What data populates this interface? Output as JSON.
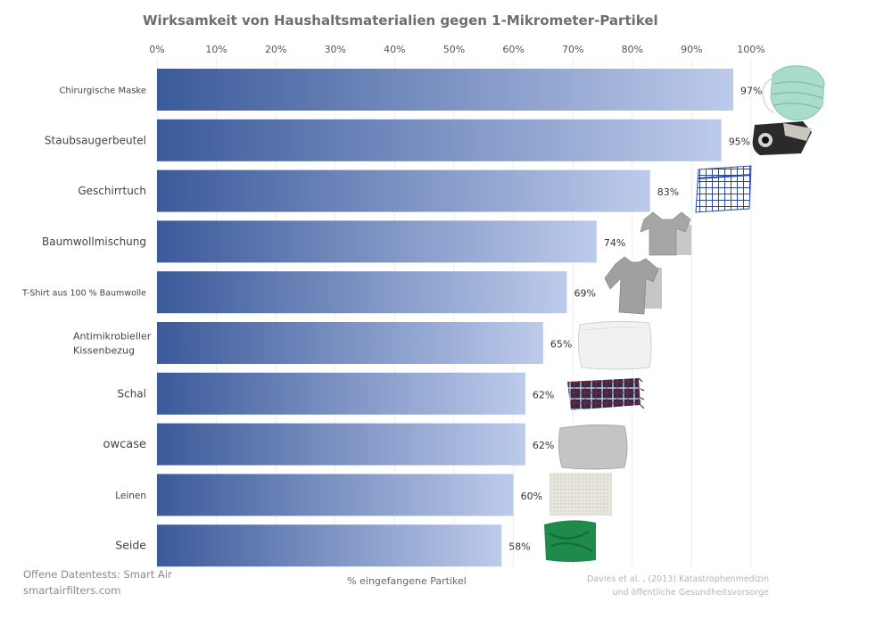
{
  "chart_data": {
    "type": "bar",
    "orientation": "horizontal",
    "title": "Wirksamkeit von Haushaltsmaterialien gegen 1-Mikrometer-Partikel",
    "xlabel": "% eingefangene Partikel",
    "ylabel": "",
    "xlim": [
      0,
      100
    ],
    "ticks": [
      "0%",
      "10%",
      "20%",
      "30%",
      "40%",
      "50%",
      "60%",
      "70%",
      "80%",
      "90%",
      "100%"
    ],
    "grid": true,
    "categories": [
      "Chirurgische Maske",
      "Staubsaugerbeutel",
      "Geschirrtuch",
      "Baumwollmischung",
      "T-Shirt aus 100 % Baumwolle",
      "Antimikrobieller Kissenbezug",
      "Schal",
      "owcase",
      "Leinen",
      "Seide"
    ],
    "values": [
      97,
      95,
      83,
      74,
      69,
      65,
      62,
      62,
      60,
      58
    ],
    "value_labels": [
      "97%",
      "95%",
      "83%",
      "74%",
      "69%",
      "65%",
      "62%",
      "62%",
      "60%",
      "58%"
    ],
    "icons": [
      "surgical-mask-icon",
      "vacuum-bag-icon",
      "dish-towel-icon",
      "cotton-blend-shirt-icon",
      "cotton-tshirt-icon",
      "pillowcase-icon",
      "scarf-icon",
      "pillow-icon",
      "linen-swatch-icon",
      "silk-swatch-icon"
    ],
    "colors": {
      "bar_start": "#3b5a9a",
      "bar_end": "#bdcbeb",
      "grid": "#ececec"
    }
  },
  "footer": {
    "left_line1": "Offene Datentests: Smart Air",
    "left_line2": "smartairfilters.com",
    "source_line1": "Davies et al. , (2013) Katastrophenmedizin",
    "source_line2": "und öffentliche Gesundheitsvorsorge"
  }
}
